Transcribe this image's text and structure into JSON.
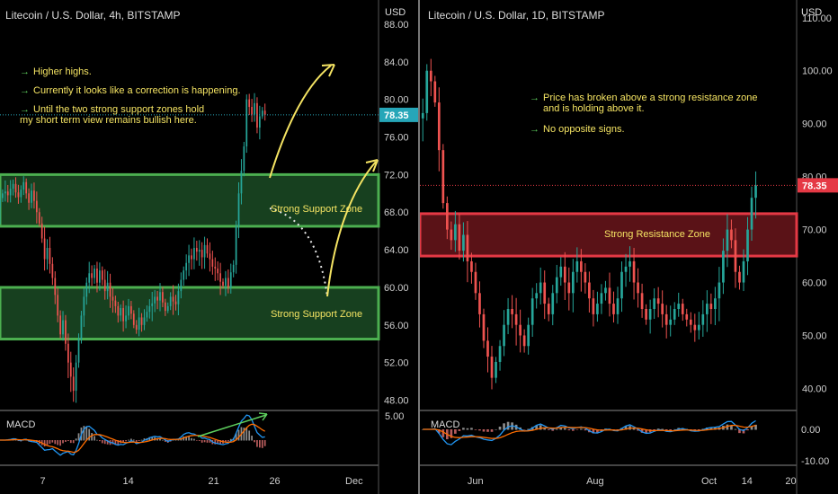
{
  "left": {
    "title": "Litecoin / U.S. Dollar, 4h, BITSTAMP",
    "currency": "USD",
    "price_tag": "78.35",
    "notes": [
      "Higher highs.",
      "Currently it looks like a correction is happening.",
      "Until the two strong support zones hold\nmy short term view remains bullish here."
    ],
    "zone_labels": [
      "Strong Support Zone",
      "Strong Support Zone"
    ],
    "macd_label": "MACD",
    "macd_tick": "5.00"
  },
  "right": {
    "title": "Litecoin / U.S. Dollar, 1D, BITSTAMP",
    "currency": "USD",
    "price_tag": "78.35",
    "notes": [
      "Price has broken above a strong resistance zone\nand is holding above it.",
      "No opposite signs."
    ],
    "zone_label": "Strong Resistance Zone",
    "macd_label": "MACD"
  },
  "colors": {
    "up": "#26a69a",
    "down": "#ef5350",
    "support_fill": "#17401f",
    "support_line": "#4caf50",
    "resistance_fill": "#5a1217",
    "resistance_line": "#e53945",
    "annotation": "#f5e463",
    "note_arrow": "#5ecf5e",
    "tag": "#26a6b8",
    "tag_right": "#e53945",
    "macd_line": "#2196f3",
    "signal_line": "#ff6d00"
  },
  "chart_data": [
    {
      "type": "candlestick",
      "title": "Litecoin / U.S. Dollar, 4h, BITSTAMP",
      "y_axis": {
        "ticks": [
          "88.00",
          "84.00",
          "80.00",
          "76.00",
          "72.00",
          "68.00",
          "64.00",
          "60.00",
          "56.00",
          "52.00",
          "48.00"
        ],
        "ylim": [
          47,
          90
        ]
      },
      "x_ticks": [
        "7",
        "14",
        "21",
        "26",
        "Dec"
      ],
      "x_tick_positions": [
        5.5,
        12.5,
        19.5,
        24.5,
        31
      ],
      "xlim": [
        2,
        33
      ],
      "last_price": 78.35,
      "zones": [
        {
          "label": "Strong Support Zone",
          "from": 66.5,
          "to": 72.0
        },
        {
          "label": "Strong Support Zone",
          "from": 54.5,
          "to": 60.0
        }
      ],
      "close_series": [
        69.5,
        70.0,
        70.2,
        69.8,
        70.5,
        71.0,
        70.1,
        69.6,
        70.4,
        71.2,
        70.0,
        69.0,
        70.3,
        69.2,
        68.0,
        66.8,
        65.2,
        63.0,
        64.2,
        62.5,
        61.0,
        59.2,
        57.0,
        55.0,
        56.5,
        54.0,
        52.0,
        50.5,
        49.0,
        52.0,
        54.5,
        57.0,
        59.0,
        60.5,
        61.5,
        61.0,
        62.0,
        60.5,
        61.8,
        60.8,
        59.6,
        60.5,
        59.0,
        58.6,
        58.0,
        57.0,
        57.8,
        56.4,
        57.0,
        58.0,
        57.2,
        56.0,
        55.5,
        56.8,
        56.0,
        56.8,
        57.4,
        58.0,
        58.3,
        59.0,
        58.6,
        59.5,
        58.4,
        57.5,
        58.0,
        59.0,
        58.5,
        58.2,
        59.6,
        60.8,
        61.8,
        62.6,
        63.4,
        63.0,
        64.2,
        63.8,
        64.0,
        63.2,
        64.5,
        63.6,
        63.0,
        62.2,
        62.0,
        61.5,
        60.6,
        60.2,
        61.0,
        60.0,
        61.6,
        62.4,
        66.5,
        70.0,
        72.4,
        75.0,
        80.0,
        79.2,
        78.4,
        79.6,
        77.0,
        78.2,
        78.8,
        78.35
      ],
      "close_x_range": [
        2.0,
        23.7
      ],
      "macd": {
        "ylim": [
          -6,
          6
        ],
        "tick": "5.00"
      }
    },
    {
      "type": "candlestick",
      "title": "Litecoin / U.S. Dollar, 1D, BITSTAMP",
      "y_axis": {
        "ticks": [
          "110.00",
          "100.00",
          "90.00",
          "80.00",
          "70.00",
          "60.00",
          "50.00",
          "40.00"
        ],
        "ylim": [
          36,
          112
        ]
      },
      "x_ticks": [
        "Jun",
        "Aug",
        "Oct",
        "14",
        "20"
      ],
      "x_tick_positions": [
        1.9,
        3.95,
        5.9,
        6.55,
        7.3
      ],
      "xlim": [
        0.95,
        7.4
      ],
      "last_price": 78.35,
      "zones": [
        {
          "label": "Strong Resistance Zone",
          "from": 65.0,
          "to": 73.0
        }
      ],
      "close_series": [
        92,
        100,
        98,
        94,
        85,
        75,
        70,
        68,
        71,
        66,
        69,
        64,
        62,
        58,
        54,
        49,
        46,
        42,
        45,
        48,
        52,
        55,
        54,
        52,
        50,
        48,
        52,
        57,
        58,
        60,
        56,
        54,
        58,
        61,
        63,
        60,
        58,
        62,
        64,
        62,
        60,
        57,
        54,
        56,
        58,
        59,
        56,
        54,
        57,
        62,
        63,
        64,
        60,
        58,
        55,
        53,
        55,
        57,
        56,
        54,
        52,
        53,
        55,
        56,
        54,
        53,
        52,
        51,
        52,
        54,
        56,
        55,
        57,
        60,
        66,
        70,
        68,
        62,
        60,
        64,
        70,
        76,
        78.35
      ],
      "close_x_range": [
        1.0,
        6.7
      ],
      "macd": {
        "ylim": [
          -12,
          6
        ],
        "ticks": [
          "0.00",
          "-10.00"
        ]
      }
    }
  ]
}
